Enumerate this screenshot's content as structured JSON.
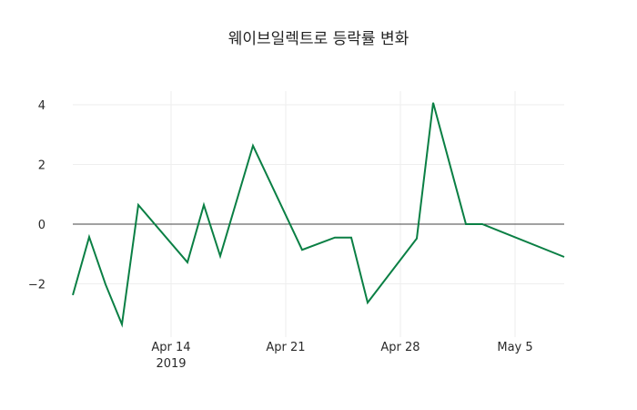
{
  "chart_data": {
    "type": "line",
    "title": "웨이브일렉트로 등락률 변화",
    "xlabel": "",
    "ylabel": "",
    "x": [
      "2019-04-08",
      "2019-04-09",
      "2019-04-10",
      "2019-04-11",
      "2019-04-12",
      "2019-04-15",
      "2019-04-16",
      "2019-04-17",
      "2019-04-19",
      "2019-04-22",
      "2019-04-24",
      "2019-04-25",
      "2019-04-26",
      "2019-04-29",
      "2019-04-30",
      "2019-05-02",
      "2019-05-03",
      "2019-05-08"
    ],
    "series": [
      {
        "name": "등락률",
        "color": "#0a7f44",
        "values": [
          -2.38,
          -0.43,
          -2.02,
          -3.36,
          0.64,
          -1.28,
          0.64,
          -1.07,
          2.63,
          -0.86,
          -0.45,
          -0.45,
          -2.63,
          -0.48,
          4.07,
          0.0,
          0.0,
          -1.1
        ]
      }
    ],
    "xlim": [
      "2019-04-08",
      "2019-05-08"
    ],
    "ylim": [
      -3.6,
      4.5
    ],
    "x_ticks": [
      {
        "date": "2019-04-14",
        "label": "Apr 14",
        "sublabel": "2019"
      },
      {
        "date": "2019-04-21",
        "label": "Apr 21",
        "sublabel": ""
      },
      {
        "date": "2019-04-28",
        "label": "Apr 28",
        "sublabel": ""
      },
      {
        "date": "2019-05-05",
        "label": "May 5",
        "sublabel": ""
      }
    ],
    "y_ticks": [
      {
        "value": 4,
        "label": "4"
      },
      {
        "value": 2,
        "label": "2"
      },
      {
        "value": 0,
        "label": "0"
      },
      {
        "value": -2,
        "label": "−2"
      }
    ],
    "grid": true,
    "zero_line": true,
    "legend": false
  }
}
